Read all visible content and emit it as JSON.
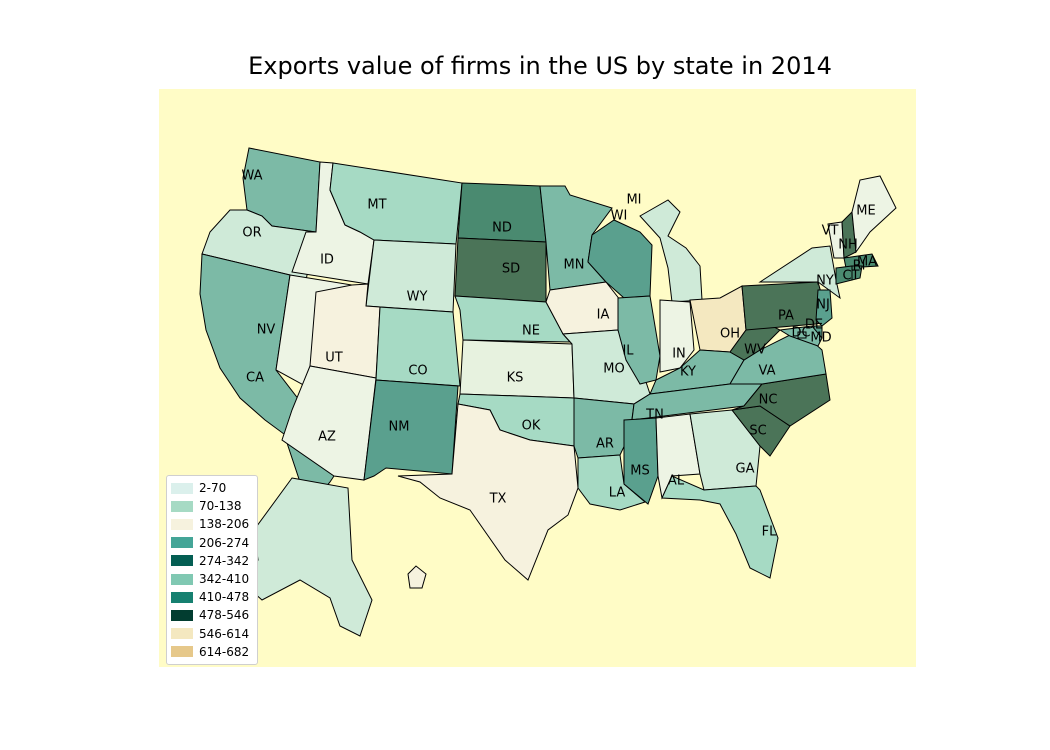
{
  "title": "Exports value of firms in the US by state in 2014",
  "background_color": "#fffcc6",
  "legend": [
    {
      "label": "2-70",
      "color": "#dbf0ec"
    },
    {
      "label": "70-138",
      "color": "#a6dac4"
    },
    {
      "label": "138-206",
      "color": "#f6f2de"
    },
    {
      "label": "206-274",
      "color": "#44a597"
    },
    {
      "label": "274-342",
      "color": "#045e53"
    },
    {
      "label": "342-410",
      "color": "#80c8b2"
    },
    {
      "label": "410-478",
      "color": "#168070"
    },
    {
      "label": "478-546",
      "color": "#023d30"
    },
    {
      "label": "546-614",
      "color": "#f4e8c0"
    },
    {
      "label": "614-682",
      "color": "#e6c88a"
    }
  ],
  "chart_data": {
    "type": "choropleth",
    "title": "Exports value of firms in the US by state in 2014",
    "regions": [
      {
        "id": "WA",
        "label": "WA",
        "class": "342-410",
        "color": "#7cbaa6"
      },
      {
        "id": "OR",
        "label": "OR",
        "class": "70-138",
        "color": "#cfead8"
      },
      {
        "id": "CA",
        "label": "CA",
        "class": "342-410",
        "color": "#7cbaa6"
      },
      {
        "id": "ID",
        "label": "ID",
        "class": "2-70",
        "color": "#edf4e4"
      },
      {
        "id": "NV",
        "label": "NV",
        "class": "2-70",
        "color": "#edf4e4"
      },
      {
        "id": "MT",
        "label": "MT",
        "class": "70-138",
        "color": "#a6dac4"
      },
      {
        "id": "WY",
        "label": "WY",
        "class": "70-138",
        "color": "#cfead8"
      },
      {
        "id": "UT",
        "label": "UT",
        "class": "138-206",
        "color": "#f6f2de"
      },
      {
        "id": "AZ",
        "label": "AZ",
        "class": "2-70",
        "color": "#edf4e4"
      },
      {
        "id": "CO",
        "label": "CO",
        "class": "70-138",
        "color": "#a6dac4"
      },
      {
        "id": "NM",
        "label": "NM",
        "class": "206-274",
        "color": "#5aa08e"
      },
      {
        "id": "ND",
        "label": "ND",
        "class": "274-342",
        "color": "#4a8a70"
      },
      {
        "id": "SD",
        "label": "SD",
        "class": "478-546",
        "color": "#4b7458"
      },
      {
        "id": "NE",
        "label": "NE",
        "class": "70-138",
        "color": "#a6dac4"
      },
      {
        "id": "KS",
        "label": "KS",
        "class": "2-70",
        "color": "#e7f2df"
      },
      {
        "id": "OK",
        "label": "OK",
        "class": "70-138",
        "color": "#a6dac4"
      },
      {
        "id": "TX",
        "label": "TX",
        "class": "138-206",
        "color": "#f6f2de"
      },
      {
        "id": "MN",
        "label": "MN",
        "class": "342-410",
        "color": "#7cbaa6"
      },
      {
        "id": "IA",
        "label": "IA",
        "class": "138-206",
        "color": "#f6f2de"
      },
      {
        "id": "MO",
        "label": "MO",
        "class": "70-138",
        "color": "#cfead8"
      },
      {
        "id": "AR",
        "label": "AR",
        "class": "342-410",
        "color": "#7cbaa6"
      },
      {
        "id": "LA",
        "label": "LA",
        "class": "70-138",
        "color": "#a6dac4"
      },
      {
        "id": "WI",
        "label": "WI",
        "class": "206-274",
        "color": "#5aa08e"
      },
      {
        "id": "IL",
        "label": "IL",
        "class": "342-410",
        "color": "#7cbaa6"
      },
      {
        "id": "MI",
        "label": "MI",
        "class": "70-138",
        "color": "#cfead8"
      },
      {
        "id": "IN",
        "label": "IN",
        "class": "2-70",
        "color": "#edf4e4"
      },
      {
        "id": "OH",
        "label": "OH",
        "class": "546-614",
        "color": "#f4e8c0"
      },
      {
        "id": "KY",
        "label": "KY",
        "class": "342-410",
        "color": "#7cbaa6"
      },
      {
        "id": "TN",
        "label": "TN",
        "class": "342-410",
        "color": "#7cbaa6"
      },
      {
        "id": "MS",
        "label": "MS",
        "class": "206-274",
        "color": "#5aa08e"
      },
      {
        "id": "AL",
        "label": "AL",
        "class": "2-70",
        "color": "#edf4e4"
      },
      {
        "id": "GA",
        "label": "GA",
        "class": "70-138",
        "color": "#cfead8"
      },
      {
        "id": "FL",
        "label": "FL",
        "class": "70-138",
        "color": "#a6dac4"
      },
      {
        "id": "SC",
        "label": "SC",
        "class": "478-546",
        "color": "#4b7458"
      },
      {
        "id": "NC",
        "label": "NC",
        "class": "478-546",
        "color": "#4b7458"
      },
      {
        "id": "VA",
        "label": "VA",
        "class": "342-410",
        "color": "#7cbaa6"
      },
      {
        "id": "WV",
        "label": "WV",
        "class": "478-546",
        "color": "#4b7458"
      },
      {
        "id": "PA",
        "label": "PA",
        "class": "478-546",
        "color": "#4b7458"
      },
      {
        "id": "NY",
        "label": "NY",
        "class": "70-138",
        "color": "#cfead8"
      },
      {
        "id": "VT",
        "label": "VT",
        "class": "2-70",
        "color": "#edf4e4"
      },
      {
        "id": "NH",
        "label": "NH",
        "class": "478-546",
        "color": "#4b7458"
      },
      {
        "id": "ME",
        "label": "ME",
        "class": "2-70",
        "color": "#edf4e4"
      },
      {
        "id": "MA",
        "label": "MA",
        "class": "274-342",
        "color": "#4a8a70"
      },
      {
        "id": "CT",
        "label": "CT",
        "class": "274-342",
        "color": "#4a8a70"
      },
      {
        "id": "RI",
        "label": "RI",
        "class": "274-342",
        "color": "#4a8a70"
      },
      {
        "id": "NJ",
        "label": "NJ",
        "class": "206-274",
        "color": "#5aa08e"
      },
      {
        "id": "DE",
        "label": "DE",
        "class": "206-274",
        "color": "#5aa08e"
      },
      {
        "id": "MD",
        "label": "MD",
        "class": "342-410",
        "color": "#7cbaa6"
      },
      {
        "id": "DC",
        "label": "DC",
        "class": "342-410",
        "color": "#7cbaa6"
      },
      {
        "id": "AK",
        "label": "",
        "class": "70-138",
        "color": "#cfead8"
      },
      {
        "id": "HI",
        "label": "",
        "class": "138-206",
        "color": "#f6f2de"
      }
    ]
  }
}
